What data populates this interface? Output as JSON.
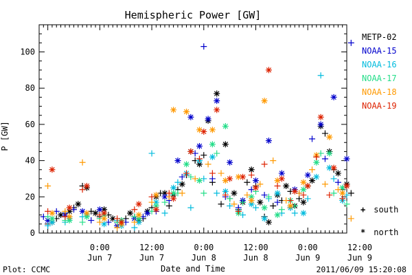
{
  "colors": {
    "foreground": "#000000",
    "background": "#ffffff"
  },
  "footer": {
    "left": "Plot: CCMC",
    "right": "2011/06/09 15:20:08"
  },
  "hemisphere_key": {
    "south": {
      "symbol": "+",
      "label": "south"
    },
    "north": {
      "symbol": "*",
      "label": "north"
    }
  },
  "chart_data": {
    "type": "scatter",
    "title": "Hemispheric Power [GW]",
    "xlabel": "Date and Time",
    "ylabel": "P [GW]",
    "x_unit": "hours since 2011-06-06 12:00 UT",
    "xlim": [
      10,
      81
    ],
    "ylim": [
      0,
      115
    ],
    "grid": false,
    "legend_position": "right",
    "x_ticks": [
      {
        "x": 24,
        "time": "0:00",
        "date": "Jun 7"
      },
      {
        "x": 36,
        "time": "12:00",
        "date": "Jun 7"
      },
      {
        "x": 48,
        "time": "0:00",
        "date": "Jun 8"
      },
      {
        "x": 60,
        "time": "12:00",
        "date": "Jun 8"
      },
      {
        "x": 72,
        "time": "0:00",
        "date": "Jun 9"
      },
      {
        "x": 84,
        "time": "12:00",
        "date": "Jun 9"
      }
    ],
    "y_ticks": [
      0,
      20,
      40,
      60,
      80,
      100
    ],
    "series": [
      {
        "name": "METP-02",
        "color": "#000000",
        "south": [
          [
            12,
            5
          ],
          [
            14,
            8
          ],
          [
            16,
            11
          ],
          [
            18,
            14
          ],
          [
            20,
            26
          ],
          [
            22,
            12
          ],
          [
            24,
            9
          ],
          [
            26,
            10
          ],
          [
            28,
            6
          ],
          [
            30,
            8
          ],
          [
            32,
            9
          ],
          [
            34,
            8
          ],
          [
            36,
            14
          ],
          [
            38,
            22
          ],
          [
            40,
            15
          ],
          [
            42,
            24
          ],
          [
            44,
            32
          ],
          [
            46,
            40
          ],
          [
            48,
            43
          ],
          [
            50,
            28
          ],
          [
            52,
            16
          ],
          [
            54,
            19
          ],
          [
            56,
            13
          ],
          [
            58,
            28
          ],
          [
            60,
            26
          ],
          [
            62,
            9
          ],
          [
            64,
            15
          ],
          [
            66,
            18
          ],
          [
            68,
            23
          ],
          [
            70,
            19
          ],
          [
            72,
            26
          ],
          [
            74,
            42
          ],
          [
            76,
            55
          ],
          [
            78,
            35
          ],
          [
            80,
            24
          ],
          [
            82,
            22
          ]
        ],
        "north": [
          [
            13,
            6
          ],
          [
            15,
            10
          ],
          [
            17,
            12
          ],
          [
            19,
            16
          ],
          [
            21,
            25
          ],
          [
            23,
            11
          ],
          [
            25,
            13
          ],
          [
            27,
            8
          ],
          [
            29,
            7
          ],
          [
            31,
            11
          ],
          [
            33,
            7
          ],
          [
            35,
            12
          ],
          [
            37,
            20
          ],
          [
            39,
            22
          ],
          [
            41,
            21
          ],
          [
            43,
            27
          ],
          [
            45,
            45
          ],
          [
            47,
            38
          ],
          [
            49,
            62
          ],
          [
            51,
            77
          ],
          [
            53,
            49
          ],
          [
            55,
            22
          ],
          [
            57,
            17
          ],
          [
            59,
            35
          ],
          [
            61,
            17
          ],
          [
            63,
            6
          ],
          [
            65,
            21
          ],
          [
            67,
            26
          ],
          [
            69,
            15
          ],
          [
            71,
            17
          ],
          [
            73,
            29
          ],
          [
            75,
            59
          ],
          [
            77,
            45
          ],
          [
            79,
            33
          ],
          [
            81,
            27
          ]
        ]
      },
      {
        "name": "NOAA-15",
        "color": "#0000cc",
        "south": [
          [
            11,
            9
          ],
          [
            14,
            12
          ],
          [
            18,
            13
          ],
          [
            22,
            7
          ],
          [
            26,
            6
          ],
          [
            30,
            6
          ],
          [
            34,
            9
          ],
          [
            37,
            12
          ],
          [
            40,
            18
          ],
          [
            43,
            31
          ],
          [
            46,
            44
          ],
          [
            48,
            103
          ],
          [
            50,
            30
          ],
          [
            53,
            20
          ],
          [
            56,
            14
          ],
          [
            59,
            24
          ],
          [
            62,
            21
          ],
          [
            65,
            17
          ],
          [
            68,
            14
          ],
          [
            70,
            22
          ],
          [
            73,
            52
          ],
          [
            76,
            41
          ],
          [
            79,
            28
          ],
          [
            82,
            105
          ]
        ],
        "north": [
          [
            12,
            7
          ],
          [
            16,
            10
          ],
          [
            20,
            12
          ],
          [
            24,
            13
          ],
          [
            28,
            4
          ],
          [
            32,
            8
          ],
          [
            35,
            11
          ],
          [
            39,
            20
          ],
          [
            42,
            40
          ],
          [
            45,
            64
          ],
          [
            47,
            48
          ],
          [
            49,
            63
          ],
          [
            51,
            73
          ],
          [
            54,
            39
          ],
          [
            57,
            18
          ],
          [
            60,
            29
          ],
          [
            63,
            51
          ],
          [
            66,
            33
          ],
          [
            69,
            24
          ],
          [
            72,
            32
          ],
          [
            75,
            60
          ],
          [
            78,
            75
          ],
          [
            81,
            41
          ]
        ]
      },
      {
        "name": "NOAA-16",
        "color": "#00bbdd",
        "south": [
          [
            12,
            4
          ],
          [
            16,
            6
          ],
          [
            20,
            9
          ],
          [
            24,
            8
          ],
          [
            28,
            7
          ],
          [
            32,
            3
          ],
          [
            36,
            44
          ],
          [
            39,
            11
          ],
          [
            42,
            28
          ],
          [
            45,
            14
          ],
          [
            48,
            30
          ],
          [
            51,
            22
          ],
          [
            54,
            15
          ],
          [
            57,
            10
          ],
          [
            60,
            14
          ],
          [
            63,
            19
          ],
          [
            66,
            11
          ],
          [
            69,
            11
          ],
          [
            72,
            19
          ],
          [
            75,
            87
          ],
          [
            78,
            30
          ],
          [
            81,
            21
          ]
        ],
        "north": [
          [
            13,
            6
          ],
          [
            17,
            8
          ],
          [
            21,
            10
          ],
          [
            25,
            5
          ],
          [
            29,
            4
          ],
          [
            33,
            6
          ],
          [
            37,
            17
          ],
          [
            41,
            25
          ],
          [
            44,
            33
          ],
          [
            47,
            40
          ],
          [
            50,
            42
          ],
          [
            53,
            23
          ],
          [
            56,
            12
          ],
          [
            59,
            16
          ],
          [
            62,
            8
          ],
          [
            65,
            22
          ],
          [
            68,
            14
          ],
          [
            71,
            11
          ],
          [
            74,
            31
          ],
          [
            77,
            36
          ],
          [
            80,
            18
          ]
        ]
      },
      {
        "name": "NOAA-17",
        "color": "#22dd88",
        "south": [
          [
            12,
            9
          ],
          [
            16,
            7
          ],
          [
            20,
            6
          ],
          [
            24,
            8
          ],
          [
            28,
            6
          ],
          [
            32,
            9
          ],
          [
            36,
            12
          ],
          [
            39,
            17
          ],
          [
            42,
            22
          ],
          [
            45,
            31
          ],
          [
            48,
            22
          ],
          [
            51,
            44
          ],
          [
            54,
            19
          ],
          [
            57,
            17
          ],
          [
            60,
            23
          ],
          [
            63,
            20
          ],
          [
            66,
            13
          ],
          [
            69,
            15
          ],
          [
            72,
            26
          ],
          [
            75,
            44
          ],
          [
            78,
            22
          ],
          [
            81,
            16
          ]
        ],
        "north": [
          [
            13,
            8
          ],
          [
            17,
            7
          ],
          [
            21,
            9
          ],
          [
            25,
            10
          ],
          [
            29,
            7
          ],
          [
            33,
            8
          ],
          [
            37,
            15
          ],
          [
            41,
            22
          ],
          [
            44,
            38
          ],
          [
            47,
            29
          ],
          [
            50,
            49
          ],
          [
            53,
            59
          ],
          [
            56,
            11
          ],
          [
            59,
            20
          ],
          [
            62,
            14
          ],
          [
            65,
            10
          ],
          [
            68,
            18
          ],
          [
            71,
            24
          ],
          [
            74,
            39
          ],
          [
            77,
            44
          ],
          [
            80,
            25
          ]
        ]
      },
      {
        "name": "NOAA-18",
        "color": "#ff9900",
        "south": [
          [
            12,
            26
          ],
          [
            16,
            12
          ],
          [
            20,
            39
          ],
          [
            24,
            6
          ],
          [
            28,
            3
          ],
          [
            32,
            6
          ],
          [
            36,
            17
          ],
          [
            40,
            20
          ],
          [
            43,
            22
          ],
          [
            46,
            30
          ],
          [
            49,
            38
          ],
          [
            52,
            33
          ],
          [
            55,
            16
          ],
          [
            58,
            21
          ],
          [
            61,
            27
          ],
          [
            64,
            40
          ],
          [
            67,
            18
          ],
          [
            70,
            22
          ],
          [
            73,
            35
          ],
          [
            76,
            27
          ],
          [
            79,
            24
          ],
          [
            82,
            8
          ]
        ],
        "north": [
          [
            13,
            11
          ],
          [
            17,
            9
          ],
          [
            21,
            11
          ],
          [
            25,
            8
          ],
          [
            29,
            5
          ],
          [
            33,
            10
          ],
          [
            37,
            21
          ],
          [
            41,
            68
          ],
          [
            44,
            67
          ],
          [
            47,
            57
          ],
          [
            50,
            57
          ],
          [
            53,
            29
          ],
          [
            56,
            31
          ],
          [
            59,
            18
          ],
          [
            62,
            73
          ],
          [
            65,
            29
          ],
          [
            68,
            15
          ],
          [
            71,
            28
          ],
          [
            74,
            43
          ],
          [
            77,
            53
          ],
          [
            80,
            22
          ]
        ]
      },
      {
        "name": "NOAA-19",
        "color": "#dd2200",
        "south": [
          [
            12,
            12
          ],
          [
            16,
            9
          ],
          [
            20,
            24
          ],
          [
            24,
            10
          ],
          [
            28,
            8
          ],
          [
            32,
            13
          ],
          [
            36,
            20
          ],
          [
            40,
            22
          ],
          [
            44,
            33
          ],
          [
            47,
            41
          ],
          [
            50,
            33
          ],
          [
            53,
            21
          ],
          [
            56,
            12
          ],
          [
            59,
            32
          ],
          [
            62,
            38
          ],
          [
            65,
            26
          ],
          [
            68,
            18
          ],
          [
            71,
            21
          ],
          [
            74,
            42
          ],
          [
            77,
            21
          ],
          [
            80,
            19
          ]
        ],
        "north": [
          [
            13,
            35
          ],
          [
            17,
            14
          ],
          [
            21,
            26
          ],
          [
            25,
            11
          ],
          [
            29,
            6
          ],
          [
            33,
            16
          ],
          [
            37,
            13
          ],
          [
            41,
            19
          ],
          [
            45,
            45
          ],
          [
            48,
            56
          ],
          [
            51,
            68
          ],
          [
            54,
            30
          ],
          [
            57,
            31
          ],
          [
            60,
            25
          ],
          [
            63,
            90
          ],
          [
            66,
            30
          ],
          [
            69,
            23
          ],
          [
            72,
            26
          ],
          [
            75,
            64
          ],
          [
            78,
            36
          ],
          [
            81,
            26
          ]
        ]
      }
    ]
  }
}
